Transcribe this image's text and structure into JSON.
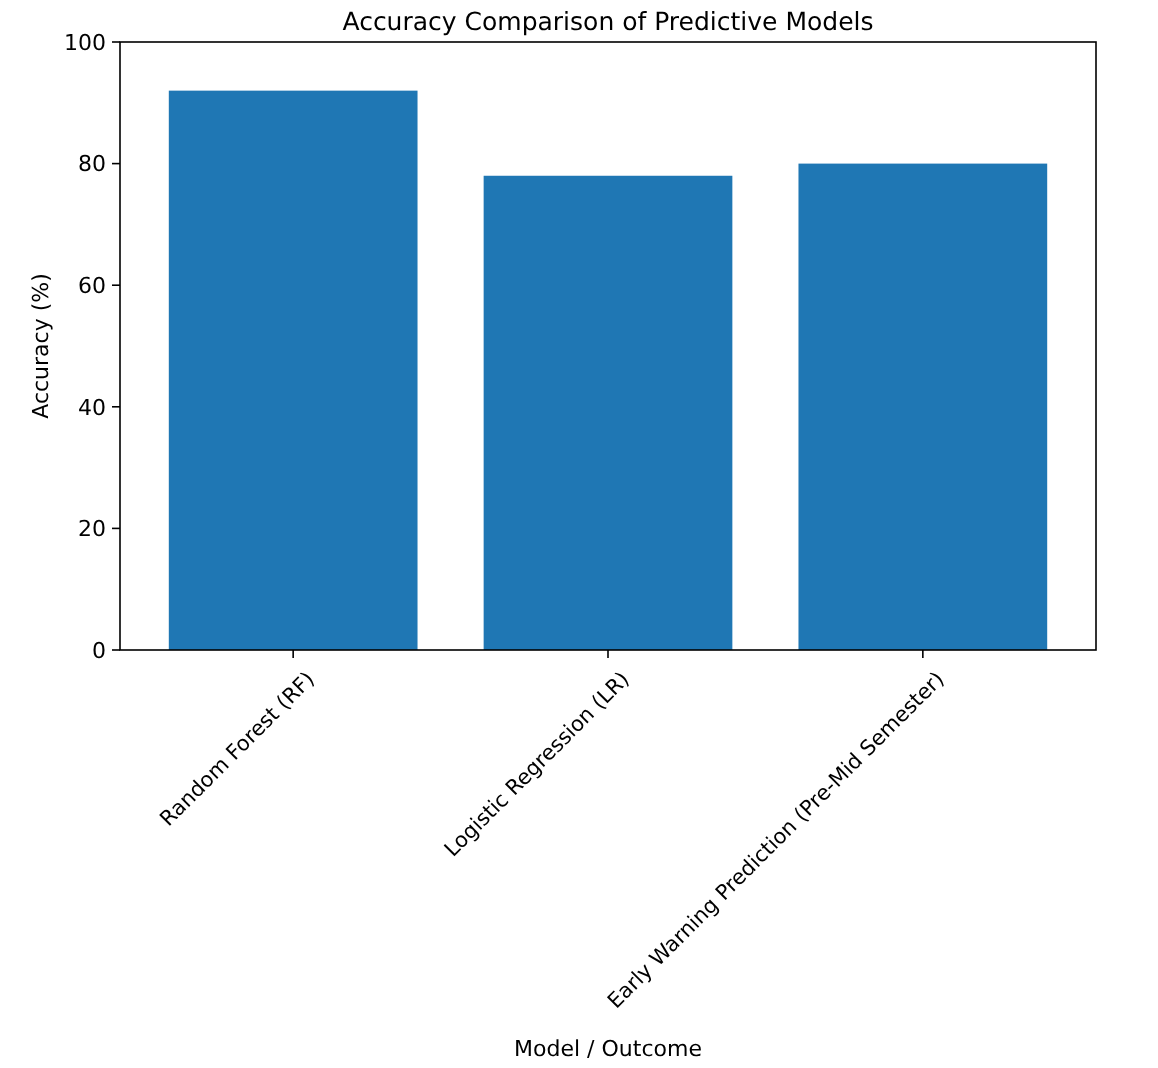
{
  "chart_data": {
    "type": "bar",
    "title": "Accuracy Comparison of Predictive Models",
    "xlabel": "Model / Outcome",
    "ylabel": "Accuracy (%)",
    "categories": [
      "Random Forest (RF)",
      "Logistic Regression (LR)",
      "Early Warning Prediction (Pre-Mid Semester)"
    ],
    "values": [
      92,
      78,
      80
    ],
    "color": "#1f77b4",
    "ylim": [
      0,
      100
    ],
    "yticks": [
      0,
      20,
      40,
      60,
      80,
      100
    ],
    "grid": false
  }
}
